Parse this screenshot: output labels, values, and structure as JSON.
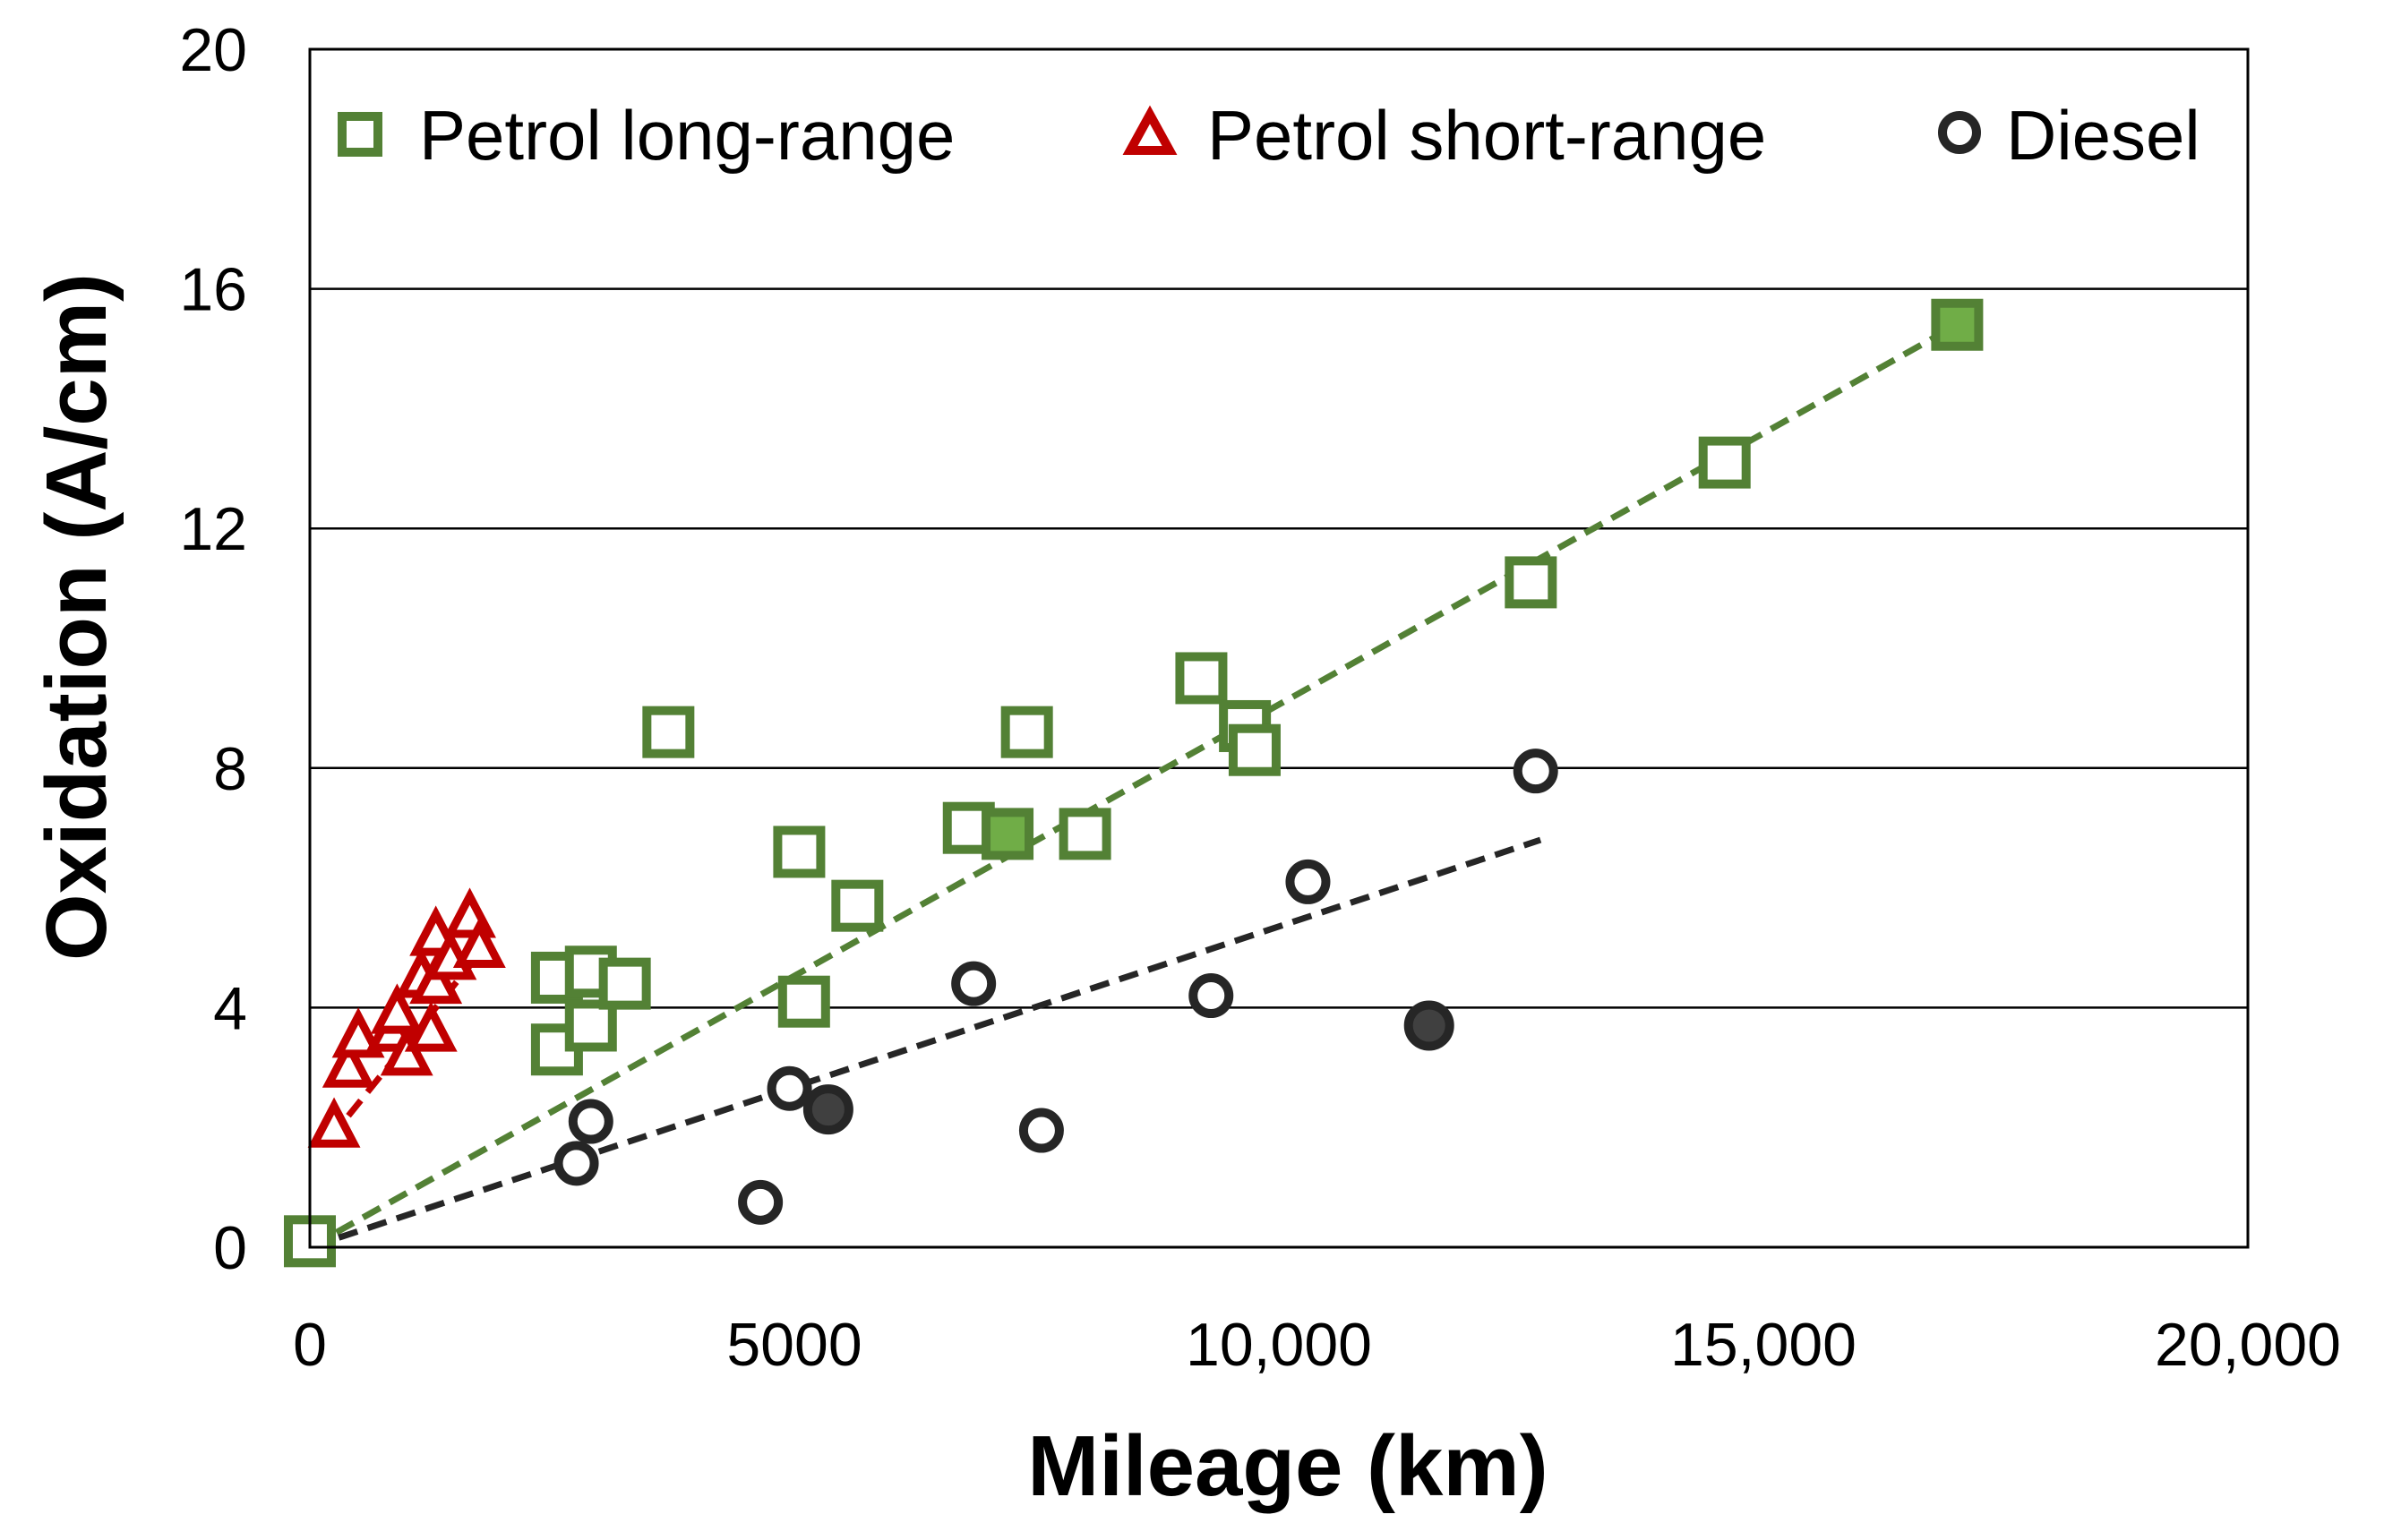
{
  "chart_data": {
    "type": "scatter",
    "title": "",
    "xlabel": "Mileage (km)",
    "ylabel": "Oxidation (A/cm)",
    "xlim": [
      0,
      20000
    ],
    "ylim": [
      0,
      20
    ],
    "x_ticks": [
      0,
      5000,
      10000,
      15000,
      20000
    ],
    "x_tick_labels": [
      "0",
      "5000",
      "10,000",
      "15,000",
      "20,000"
    ],
    "y_ticks": [
      0,
      4,
      8,
      12,
      16,
      20
    ],
    "y_tick_labels": [
      "0",
      "4",
      "8",
      "12",
      "16",
      "20"
    ],
    "grid": "horizontal",
    "legend_position": "top",
    "series": [
      {
        "name": "Petrol long-range",
        "marker": "square",
        "color": "#538135",
        "trend_color": "#538135",
        "trendline": {
          "x": [
            0,
            17000
          ],
          "y": [
            0,
            15.4
          ]
        },
        "points": [
          {
            "x": 0,
            "y": 0.1,
            "filled": false
          },
          {
            "x": 2550,
            "y": 3.3,
            "filled": false
          },
          {
            "x": 2550,
            "y": 4.5,
            "filled": false
          },
          {
            "x": 2900,
            "y": 3.7,
            "filled": false
          },
          {
            "x": 2900,
            "y": 4.6,
            "filled": false
          },
          {
            "x": 3250,
            "y": 4.4,
            "filled": false
          },
          {
            "x": 3700,
            "y": 8.6,
            "filled": false
          },
          {
            "x": 5100,
            "y": 4.1,
            "filled": false
          },
          {
            "x": 5050,
            "y": 6.6,
            "filled": false
          },
          {
            "x": 5650,
            "y": 5.7,
            "filled": false
          },
          {
            "x": 6800,
            "y": 7.0,
            "filled": false
          },
          {
            "x": 7200,
            "y": 6.9,
            "filled": true
          },
          {
            "x": 7400,
            "y": 8.6,
            "filled": false
          },
          {
            "x": 8000,
            "y": 6.9,
            "filled": false
          },
          {
            "x": 9200,
            "y": 9.5,
            "filled": false
          },
          {
            "x": 9650,
            "y": 8.7,
            "filled": false
          },
          {
            "x": 9750,
            "y": 8.3,
            "filled": false
          },
          {
            "x": 12600,
            "y": 11.1,
            "filled": false
          },
          {
            "x": 14600,
            "y": 13.1,
            "filled": false
          },
          {
            "x": 17000,
            "y": 15.4,
            "filled": true
          }
        ]
      },
      {
        "name": "Petrol short-range",
        "marker": "triangle",
        "color": "#c00000",
        "trend_color": "#c00000",
        "trendline": {
          "x": [
            200,
            1800
          ],
          "y": [
            1.8,
            5.0
          ]
        },
        "points": [
          {
            "x": 250,
            "y": 2.0
          },
          {
            "x": 400,
            "y": 3.0
          },
          {
            "x": 500,
            "y": 3.5
          },
          {
            "x": 850,
            "y": 3.6
          },
          {
            "x": 900,
            "y": 3.9
          },
          {
            "x": 1000,
            "y": 3.2
          },
          {
            "x": 1150,
            "y": 4.5
          },
          {
            "x": 1250,
            "y": 3.6
          },
          {
            "x": 1300,
            "y": 4.4
          },
          {
            "x": 1300,
            "y": 5.2
          },
          {
            "x": 1450,
            "y": 4.8
          },
          {
            "x": 1650,
            "y": 5.5
          },
          {
            "x": 1750,
            "y": 5.0
          }
        ]
      },
      {
        "name": "Diesel",
        "marker": "circle",
        "color": "#262626",
        "trend_color": "#262626",
        "trendline": {
          "x": [
            0,
            12700
          ],
          "y": [
            0,
            6.8
          ]
        },
        "points": [
          {
            "x": 2750,
            "y": 1.4,
            "filled": false
          },
          {
            "x": 2900,
            "y": 2.1,
            "filled": false
          },
          {
            "x": 4650,
            "y": 0.75,
            "filled": false
          },
          {
            "x": 4950,
            "y": 2.65,
            "filled": false
          },
          {
            "x": 5350,
            "y": 2.3,
            "filled": true
          },
          {
            "x": 6850,
            "y": 4.4,
            "filled": false
          },
          {
            "x": 7550,
            "y": 1.95,
            "filled": false
          },
          {
            "x": 9300,
            "y": 4.2,
            "filled": false
          },
          {
            "x": 10300,
            "y": 6.1,
            "filled": false
          },
          {
            "x": 11550,
            "y": 3.7,
            "filled": true
          },
          {
            "x": 12650,
            "y": 7.95,
            "filled": false
          }
        ]
      }
    ]
  }
}
